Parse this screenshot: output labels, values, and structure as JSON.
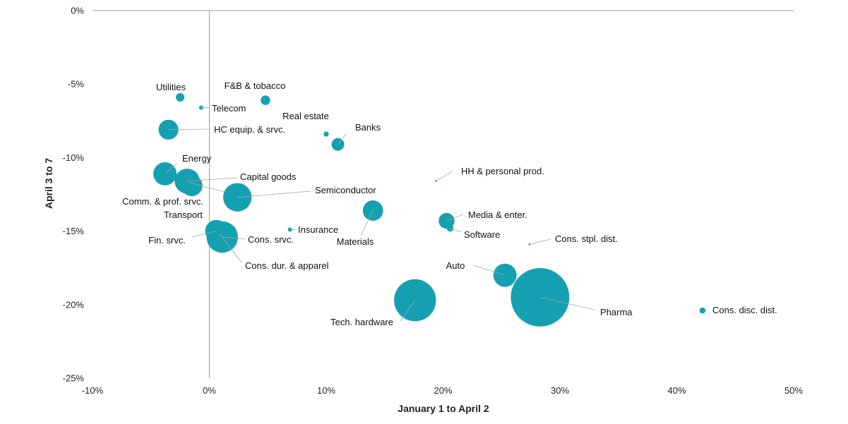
{
  "chart_data": {
    "type": "scatter",
    "xlabel": "January 1 to April 2",
    "ylabel": "April 3 to 7",
    "xlim": [
      -10,
      50
    ],
    "ylim": [
      -25,
      0
    ],
    "x_ticks": [
      {
        "value": -10,
        "label": "-10%"
      },
      {
        "value": 0,
        "label": "0%"
      },
      {
        "value": 10,
        "label": "10%"
      },
      {
        "value": 20,
        "label": "20%"
      },
      {
        "value": 30,
        "label": "30%"
      },
      {
        "value": 40,
        "label": "40%"
      },
      {
        "value": 50,
        "label": "50%"
      }
    ],
    "y_ticks": [
      {
        "value": 0,
        "label": "0%"
      },
      {
        "value": -5,
        "label": "-5%"
      },
      {
        "value": -10,
        "label": "-10%"
      },
      {
        "value": -15,
        "label": "-15%"
      },
      {
        "value": -20,
        "label": "-20%"
      },
      {
        "value": -25,
        "label": "-25%"
      }
    ],
    "grid": false,
    "points": [
      {
        "label": "Utilities",
        "x": -2.5,
        "y": -5.9,
        "size": 0.4
      },
      {
        "label": "Telecom",
        "x": -0.7,
        "y": -6.6,
        "size": 0.1
      },
      {
        "label": "F&B & tobacco",
        "x": 4.8,
        "y": -6.1,
        "size": 0.5
      },
      {
        "label": "Real estate",
        "x": 10.0,
        "y": -8.4,
        "size": 0.15
      },
      {
        "label": "Banks",
        "x": 11.0,
        "y": -9.1,
        "size": 0.9
      },
      {
        "label": "HC equip. & srvc.",
        "x": -3.5,
        "y": -8.1,
        "size": 2.2
      },
      {
        "label": "Energy",
        "x": -3.8,
        "y": -11.1,
        "size": 3.0
      },
      {
        "label": "Capital goods",
        "x": -1.9,
        "y": -11.6,
        "size": 3.5
      },
      {
        "label": "Transport",
        "x": -1.5,
        "y": -11.9,
        "size": 2.5
      },
      {
        "label": "Comm. & prof. srvc.",
        "x": -1.7,
        "y": -11.7,
        "size": 0.3
      },
      {
        "label": "Semiconductor",
        "x": 2.4,
        "y": -12.7,
        "size": 4.5
      },
      {
        "label": "HH & personal prod.",
        "x": 19.4,
        "y": -11.6,
        "size": 0.02
      },
      {
        "label": "Materials",
        "x": 14.0,
        "y": -13.6,
        "size": 2.3
      },
      {
        "label": "Media & enter.",
        "x": 20.3,
        "y": -14.3,
        "size": 1.4
      },
      {
        "label": "Software",
        "x": 20.6,
        "y": -14.8,
        "size": 0.25
      },
      {
        "label": "Insurance",
        "x": 6.9,
        "y": -14.9,
        "size": 0.1
      },
      {
        "label": "Fin. srvc.",
        "x": 0.6,
        "y": -15.0,
        "size": 2.8
      },
      {
        "label": "Cons. srvc.",
        "x": 1.1,
        "y": -15.4,
        "size": 5.5
      },
      {
        "label": "Cons. dur. & apparel",
        "x": 0.9,
        "y": -15.2,
        "size": 0.3
      },
      {
        "label": "Cons. stpl. dist.",
        "x": 27.4,
        "y": -15.9,
        "size": 0.02
      },
      {
        "label": "Auto",
        "x": 25.3,
        "y": -18.0,
        "size": 3.0
      },
      {
        "label": "Tech. hardware",
        "x": 17.6,
        "y": -19.7,
        "size": 9.8
      },
      {
        "label": "Pharma",
        "x": 28.3,
        "y": -19.5,
        "size": 19.0
      },
      {
        "label": "Cons. disc. dist.",
        "x": 42.2,
        "y": -20.4,
        "size": 0.2
      }
    ]
  },
  "colors": {
    "bubble": "#15a0b1",
    "axis": "#9e9e9e",
    "leader": "#a6a6a6",
    "text": "#111111"
  }
}
